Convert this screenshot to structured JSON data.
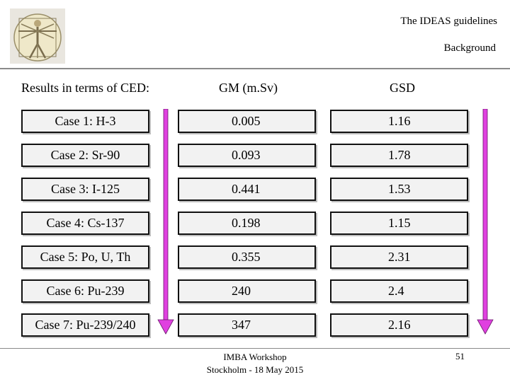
{
  "header": {
    "title": "The IDEAS guidelines",
    "section": "Background"
  },
  "table": {
    "headers": [
      "Results in terms of CED:",
      "GM (m.Sv)",
      "GSD"
    ],
    "rows": [
      {
        "case": "Case 1: H-3",
        "gm": "0.005",
        "gsd": "1.16"
      },
      {
        "case": "Case 2: Sr-90",
        "gm": "0.093",
        "gsd": "1.78"
      },
      {
        "case": "Case 3: I-125",
        "gm": "0.441",
        "gsd": "1.53"
      },
      {
        "case": "Case 4: Cs-137",
        "gm": "0.198",
        "gsd": "1.15"
      },
      {
        "case": "Case 5: Po, U, Th",
        "gm": "0.355",
        "gsd": "2.31"
      },
      {
        "case": "Case 6: Pu-239",
        "gm": "240",
        "gsd": "2.4"
      },
      {
        "case": "Case 7: Pu-239/240",
        "gm": "347",
        "gsd": "2.16"
      }
    ]
  },
  "arrows": {
    "color": "#e040e0",
    "icon": "arrow-down-icon"
  },
  "footer": {
    "line1": "IMBA Workshop",
    "line2": "Stockholm - 18 May 2015",
    "page_number": "51"
  }
}
